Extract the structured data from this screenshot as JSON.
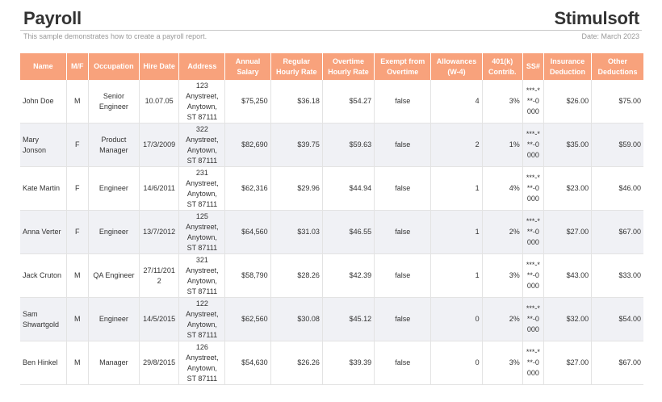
{
  "header": {
    "title": "Payroll",
    "brand": "Stimulsoft",
    "subtitle": "This sample demonstrates how to create a payroll report.",
    "date": "Date: March 2023"
  },
  "colors": {
    "header_bg": "#f8a27c",
    "alt_row_bg": "#f0f1f5"
  },
  "columns": [
    "Name",
    "M/F",
    "Occupation",
    "Hire Date",
    "Address",
    "Annual Salary",
    "Regular Hourly Rate",
    "Overtime Hourly Rate",
    "Exempt from Overtime",
    "Allowances (W-4)",
    "401(k) Contrib.",
    "SS#",
    "Insurance Deduction",
    "Other Deductions"
  ],
  "rows": [
    [
      "John Doe",
      "M",
      "Senior Engineer",
      "10.07.05",
      "123 Anystreet, Anytown, ST 87111",
      "$75,250",
      "$36.18",
      "$54.27",
      "false",
      "4",
      "3%",
      "***-***-0000",
      "$26.00",
      "$75.00"
    ],
    [
      "Mary Jonson",
      "F",
      "Product Manager",
      "17/3/2009",
      "322 Anystreet, Anytown, ST 87111",
      "$82,690",
      "$39.75",
      "$59.63",
      "false",
      "2",
      "1%",
      "***-***-0000",
      "$35.00",
      "$59.00"
    ],
    [
      "Kate Martin",
      "F",
      "Engineer",
      "14/6/2011",
      "231 Anystreet, Anytown, ST 87111",
      "$62,316",
      "$29.96",
      "$44.94",
      "false",
      "1",
      "4%",
      "***-***-0000",
      "$23.00",
      "$46.00"
    ],
    [
      "Anna Verter",
      "F",
      "Engineer",
      "13/7/2012",
      "125 Anystreet, Anytown, ST 87111",
      "$64,560",
      "$31.03",
      "$46.55",
      "false",
      "1",
      "2%",
      "***-***-0000",
      "$27.00",
      "$67.00"
    ],
    [
      "Jack Cruton",
      "M",
      "QA Engineer",
      "27/11/2012",
      "321 Anystreet, Anytown, ST 87111",
      "$58,790",
      "$28.26",
      "$42.39",
      "false",
      "1",
      "3%",
      "***-***-0000",
      "$43.00",
      "$33.00"
    ],
    [
      "Sam Shwartgold",
      "M",
      "Engineer",
      "14/5/2015",
      "122 Anystreet, Anytown, ST 87111",
      "$62,560",
      "$30.08",
      "$45.12",
      "false",
      "0",
      "2%",
      "***-***-0000",
      "$32.00",
      "$54.00"
    ],
    [
      "Ben Hinkel",
      "M",
      "Manager",
      "29/8/2015",
      "126 Anystreet, Anytown, ST 87111",
      "$54,630",
      "$26.26",
      "$39.39",
      "false",
      "0",
      "3%",
      "***-***-0000",
      "$27.00",
      "$67.00"
    ]
  ]
}
